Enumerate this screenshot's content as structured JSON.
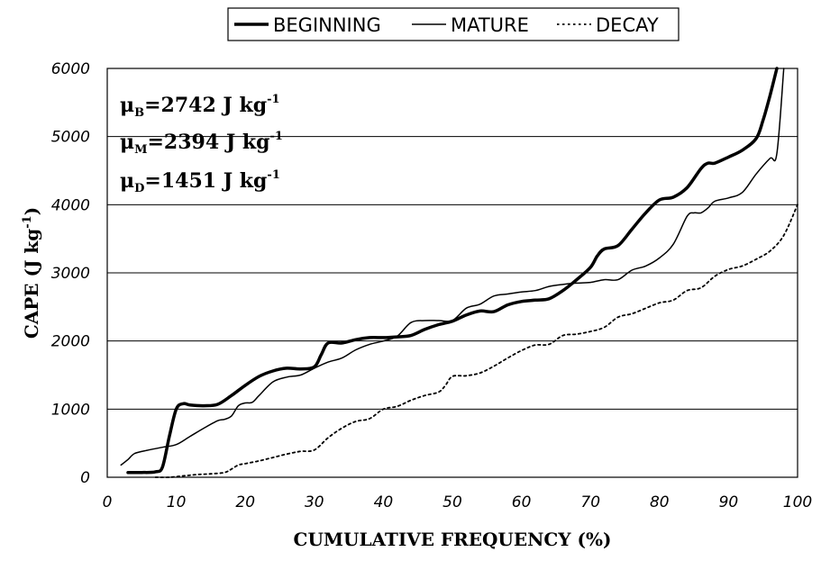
{
  "chart_data": {
    "type": "line",
    "title": "",
    "xlabel": "CUMULATIVE FREQUENCY (%)",
    "ylabel": "CAPE (J kg",
    "ylabel_sup": "-1",
    "ylabel_end": ")",
    "xlim": [
      0,
      100
    ],
    "ylim": [
      0,
      6000
    ],
    "x_ticks": [
      "0",
      "10",
      "20",
      "30",
      "40",
      "50",
      "60",
      "70",
      "80",
      "90",
      "100"
    ],
    "y_ticks": [
      "0",
      "1000",
      "2000",
      "3000",
      "4000",
      "5000",
      "6000"
    ],
    "grid": "horizontal",
    "legend_position": "top-center",
    "annotations": [
      {
        "mu": "μ",
        "sub": "B",
        "text": "=2742 J kg",
        "sup": "-1"
      },
      {
        "mu": "μ",
        "sub": "M",
        "text": "=2394 J kg",
        "sup": "-1"
      },
      {
        "mu": "μ",
        "sub": "D",
        "text": "=1451 J kg",
        "sup": "-1"
      }
    ],
    "series": [
      {
        "name": "BEGINNING",
        "style": "thick",
        "color": "#000000",
        "x": [
          3,
          5,
          7,
          8,
          9,
          10,
          11,
          12,
          14,
          16,
          18,
          20,
          22,
          24,
          26,
          28,
          30,
          31,
          32,
          34,
          36,
          38,
          40,
          42,
          44,
          46,
          48,
          50,
          52,
          54,
          56,
          58,
          60,
          62,
          64,
          66,
          68,
          70,
          71,
          72,
          74,
          76,
          78,
          80,
          82,
          84,
          86,
          87,
          88,
          90,
          92,
          94,
          95,
          96,
          97
        ],
        "values": [
          70,
          70,
          80,
          150,
          600,
          1000,
          1080,
          1060,
          1050,
          1070,
          1200,
          1350,
          1480,
          1560,
          1600,
          1590,
          1620,
          1800,
          1970,
          1970,
          2020,
          2050,
          2050,
          2060,
          2080,
          2170,
          2240,
          2290,
          2380,
          2440,
          2430,
          2530,
          2580,
          2600,
          2620,
          2740,
          2900,
          3080,
          3250,
          3350,
          3400,
          3640,
          3880,
          4070,
          4110,
          4250,
          4530,
          4610,
          4610,
          4700,
          4800,
          4970,
          5240,
          5600,
          6000
        ]
      },
      {
        "name": "MATURE",
        "style": "thin",
        "color": "#000000",
        "x": [
          2,
          3,
          4,
          6,
          8,
          10,
          12,
          14,
          16,
          17,
          18,
          19,
          20,
          21,
          22,
          24,
          26,
          28,
          30,
          32,
          34,
          36,
          38,
          40,
          42,
          44,
          46,
          48,
          50,
          52,
          54,
          56,
          58,
          60,
          62,
          64,
          66,
          68,
          70,
          72,
          74,
          76,
          78,
          80,
          82,
          84,
          85,
          86,
          87,
          88,
          90,
          92,
          94,
          96,
          97,
          98
        ],
        "values": [
          180,
          260,
          350,
          400,
          440,
          480,
          600,
          720,
          830,
          850,
          900,
          1050,
          1090,
          1100,
          1200,
          1400,
          1470,
          1500,
          1600,
          1690,
          1750,
          1870,
          1950,
          2000,
          2070,
          2270,
          2300,
          2300,
          2300,
          2480,
          2540,
          2660,
          2690,
          2720,
          2740,
          2800,
          2830,
          2850,
          2860,
          2900,
          2900,
          3040,
          3100,
          3220,
          3420,
          3830,
          3880,
          3880,
          3950,
          4050,
          4100,
          4180,
          4450,
          4680,
          4750,
          6000
        ]
      },
      {
        "name": "DECAY",
        "style": "dotted",
        "color": "#000000",
        "x": [
          7,
          9,
          11,
          13,
          15,
          17,
          18,
          19,
          20,
          22,
          24,
          26,
          28,
          30,
          32,
          34,
          36,
          38,
          40,
          42,
          44,
          46,
          48,
          49,
          50,
          52,
          54,
          56,
          58,
          60,
          62,
          64,
          66,
          68,
          70,
          72,
          74,
          76,
          78,
          80,
          82,
          84,
          86,
          88,
          90,
          92,
          94,
          96,
          98,
          100
        ],
        "values": [
          0,
          0,
          20,
          40,
          50,
          70,
          120,
          180,
          200,
          240,
          290,
          340,
          380,
          400,
          580,
          720,
          820,
          860,
          1000,
          1040,
          1130,
          1200,
          1250,
          1350,
          1480,
          1490,
          1530,
          1630,
          1750,
          1860,
          1940,
          1950,
          2080,
          2100,
          2140,
          2200,
          2350,
          2400,
          2480,
          2560,
          2600,
          2740,
          2780,
          2950,
          3050,
          3100,
          3200,
          3320,
          3550,
          4000
        ]
      }
    ]
  }
}
